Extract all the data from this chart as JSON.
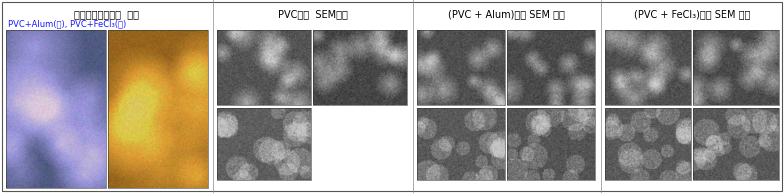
{
  "title_left_line1": "디지털편광현미경  분석",
  "title_left_line2": "PVC+Alum(좌), PVC+FeCl₃(우)",
  "title_center": "PVC시료  SEM분석",
  "title_right1": "(PVC + Alum)시료 SEM 분석",
  "title_right2": "(PVC + FeCl₃)시료 SEM 분석",
  "bg_color": "#ffffff",
  "border_color": "#000000",
  "text_color": "#000000",
  "figure_width": 7.84,
  "figure_height": 1.93,
  "dpi": 100,
  "font_size_title": 7.0,
  "font_size_label": 6.5
}
